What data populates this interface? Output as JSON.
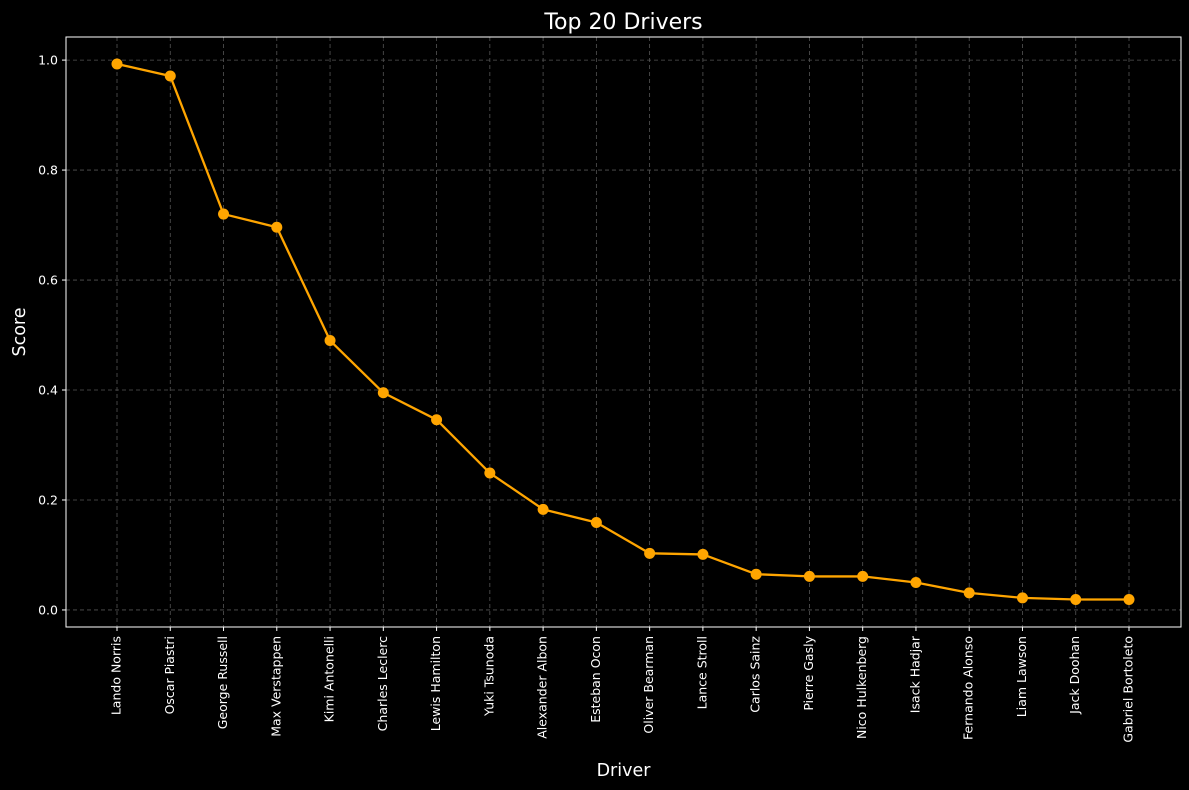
{
  "chart_data": {
    "type": "line",
    "title": "Top 20 Drivers",
    "xlabel": "Driver",
    "ylabel": "Score",
    "categories": [
      "Lando Norris",
      "Oscar Piastri",
      "George Russell",
      "Max Verstappen",
      "Kimi Antonelli",
      "Charles Leclerc",
      "Lewis Hamilton",
      "Yuki Tsunoda",
      "Alexander Albon",
      "Esteban Ocon",
      "Oliver Bearman",
      "Lance Stroll",
      "Carlos Sainz",
      "Pierre Gasly",
      "Nico Hulkenberg",
      "Isack Hadjar",
      "Fernando Alonso",
      "Liam Lawson",
      "Jack Doohan",
      "Gabriel Bortoleto"
    ],
    "series": [
      {
        "values": [
          0.993,
          0.971,
          0.72,
          0.696,
          0.49,
          0.395,
          0.346,
          0.249,
          0.183,
          0.159,
          0.103,
          0.101,
          0.065,
          0.061,
          0.061,
          0.05,
          0.031,
          0.022,
          0.019,
          0.019
        ],
        "color": "#ffa500"
      }
    ],
    "ylim": [
      -0.031,
      1.042
    ],
    "yticks": [
      0.0,
      0.2,
      0.4,
      0.6,
      0.8,
      1.0
    ],
    "ytick_labels": [
      "0.0",
      "0.2",
      "0.4",
      "0.6",
      "0.8",
      "1.0"
    ],
    "grid": true,
    "legend": "none",
    "colors": {
      "background": "#000000",
      "axes_face": "#000000",
      "spine": "#ffffff",
      "grid": "#555555",
      "text": "#ffffff",
      "line": "#ffa500"
    }
  }
}
